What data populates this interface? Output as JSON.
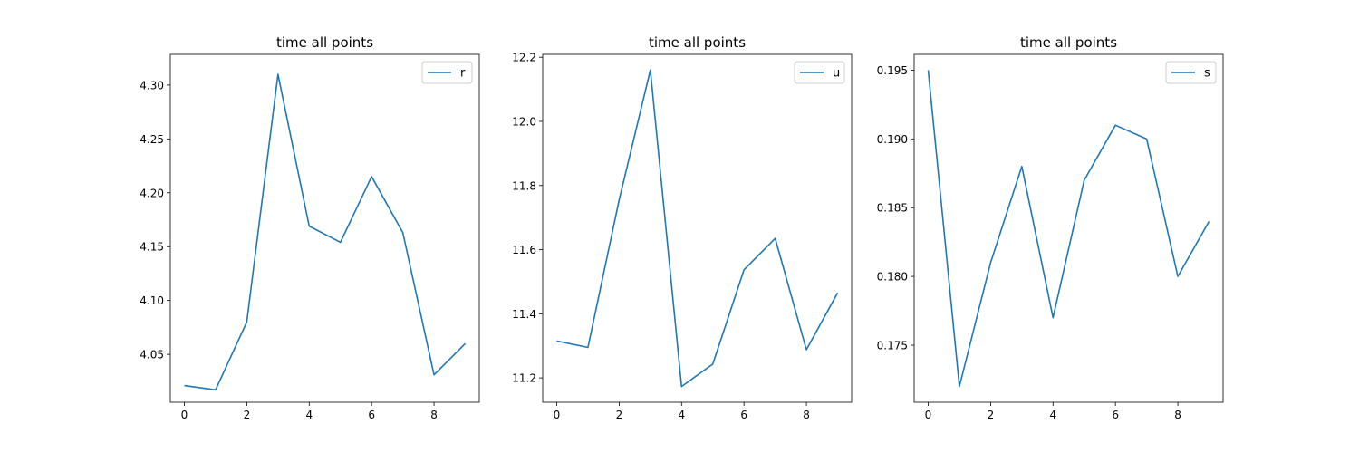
{
  "chart_data": [
    {
      "type": "line",
      "title": "time all points",
      "xlabel": "",
      "ylabel": "",
      "x": [
        0,
        1,
        2,
        3,
        4,
        5,
        6,
        7,
        8,
        9
      ],
      "series": [
        {
          "name": "r",
          "color": "#1f77b4",
          "values": [
            4.021,
            4.017,
            4.08,
            4.31,
            4.169,
            4.154,
            4.215,
            4.163,
            4.031,
            4.06
          ]
        }
      ],
      "xlim": [
        -0.45,
        9.45
      ],
      "ylim": [
        4.0055,
        4.3285
      ],
      "xticks": [
        0,
        2,
        4,
        6,
        8
      ],
      "xtick_labels": [
        "0",
        "2",
        "4",
        "6",
        "8"
      ],
      "yticks": [
        4.05,
        4.1,
        4.15,
        4.2,
        4.25,
        4.3
      ],
      "ytick_labels": [
        "4.05",
        "4.10",
        "4.15",
        "4.20",
        "4.25",
        "4.30"
      ],
      "legend": "top-right",
      "grid": false
    },
    {
      "type": "line",
      "title": "time all points",
      "xlabel": "",
      "ylabel": "",
      "x": [
        0,
        1,
        2,
        3,
        4,
        5,
        6,
        7,
        8,
        9
      ],
      "series": [
        {
          "name": "u",
          "color": "#1f77b4",
          "values": [
            11.315,
            11.295,
            11.755,
            12.16,
            11.173,
            11.243,
            11.537,
            11.635,
            11.288,
            11.465
          ]
        }
      ],
      "xlim": [
        -0.45,
        9.45
      ],
      "ylim": [
        11.124,
        12.209
      ],
      "xticks": [
        0,
        2,
        4,
        6,
        8
      ],
      "xtick_labels": [
        "0",
        "2",
        "4",
        "6",
        "8"
      ],
      "yticks": [
        11.2,
        11.4,
        11.6,
        11.8,
        12.0,
        12.2
      ],
      "ytick_labels": [
        "11.2",
        "11.4",
        "11.6",
        "11.8",
        "12.0",
        "12.2"
      ],
      "legend": "top-right",
      "grid": false
    },
    {
      "type": "line",
      "title": "time all points",
      "xlabel": "",
      "ylabel": "",
      "x": [
        0,
        1,
        2,
        3,
        4,
        5,
        6,
        7,
        8,
        9
      ],
      "series": [
        {
          "name": "s",
          "color": "#1f77b4",
          "values": [
            0.195,
            0.172,
            0.181,
            0.188,
            0.177,
            0.187,
            0.191,
            0.19,
            0.18,
            0.184
          ]
        }
      ],
      "xlim": [
        -0.45,
        9.45
      ],
      "ylim": [
        0.17085,
        0.19615
      ],
      "xticks": [
        0,
        2,
        4,
        6,
        8
      ],
      "xtick_labels": [
        "0",
        "2",
        "4",
        "6",
        "8"
      ],
      "yticks": [
        0.175,
        0.18,
        0.185,
        0.19,
        0.195
      ],
      "ytick_labels": [
        "0.175",
        "0.180",
        "0.185",
        "0.190",
        "0.195"
      ],
      "legend": "top-right",
      "grid": false
    }
  ]
}
